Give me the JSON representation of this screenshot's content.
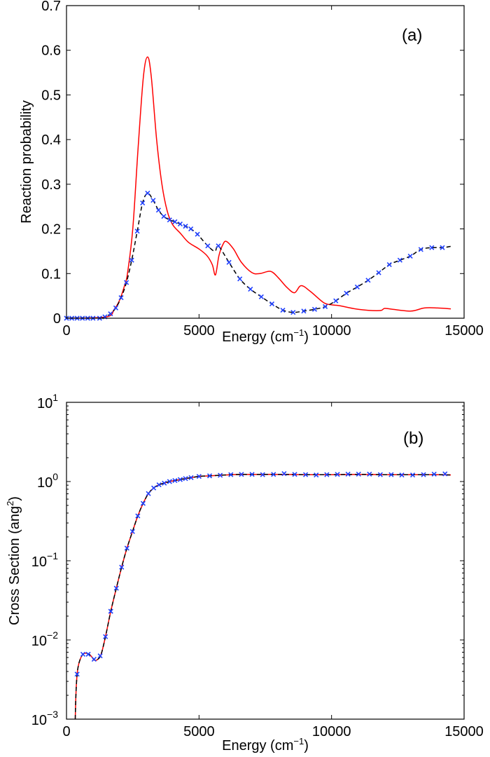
{
  "chart_data": [
    {
      "type": "line",
      "panel_label": "(a)",
      "xlabel": "Energy (cm",
      "xlabel_sup": "−1",
      "xlabel_close": ")",
      "ylabel": "Reaction probability",
      "xlim": [
        0,
        15000
      ],
      "ylim": [
        0,
        0.7
      ],
      "x_ticks": [
        "0",
        "5000",
        "10000",
        "15000"
      ],
      "y_ticks": [
        "0",
        "0.1",
        "0.2",
        "0.3",
        "0.4",
        "0.5",
        "0.6",
        "0.7"
      ],
      "y_scale": "linear",
      "grid": false,
      "series": [
        {
          "style": "solid",
          "color": "#ff0000",
          "x": [
            0,
            1500,
            1800,
            2000,
            2200,
            2300,
            2500,
            2700,
            2900,
            3060,
            3200,
            3400,
            3600,
            3800,
            4000,
            4300,
            4600,
            5000,
            5300,
            5500,
            5620,
            5750,
            5900,
            6030,
            6300,
            6600,
            7000,
            7300,
            7700,
            8000,
            8300,
            8600,
            8850,
            9200,
            9700,
            10000,
            10300,
            11000,
            11800,
            12000,
            12300,
            13000,
            13500,
            14000,
            14500
          ],
          "y": [
            0,
            0.003,
            0.02,
            0.04,
            0.075,
            0.1,
            0.2,
            0.38,
            0.54,
            0.585,
            0.54,
            0.4,
            0.3,
            0.24,
            0.21,
            0.19,
            0.17,
            0.155,
            0.14,
            0.12,
            0.097,
            0.14,
            0.165,
            0.172,
            0.155,
            0.125,
            0.102,
            0.1,
            0.105,
            0.09,
            0.07,
            0.057,
            0.073,
            0.06,
            0.035,
            0.03,
            0.028,
            0.02,
            0.017,
            0.022,
            0.02,
            0.016,
            0.023,
            0.023,
            0.021
          ]
        },
        {
          "style": "dashed",
          "color": "#000000",
          "x": [
            0,
            1250,
            1450,
            1660,
            1860,
            2060,
            2260,
            2460,
            2670,
            2870,
            3060,
            3270,
            3470,
            3670,
            3890,
            4090,
            4290,
            4490,
            4690,
            4940,
            5330,
            5600,
            5730,
            6130,
            6540,
            6940,
            7350,
            7750,
            8160,
            8550,
            8950,
            9360,
            9760,
            10160,
            10560,
            10970,
            11380,
            11780,
            12180,
            12580,
            12970,
            13370,
            13780,
            14180,
            14500
          ],
          "y": [
            0,
            0,
            0.003,
            0.01,
            0.023,
            0.046,
            0.08,
            0.13,
            0.195,
            0.258,
            0.28,
            0.264,
            0.242,
            0.228,
            0.22,
            0.216,
            0.211,
            0.206,
            0.2,
            0.188,
            0.162,
            0.15,
            0.162,
            0.125,
            0.088,
            0.065,
            0.048,
            0.032,
            0.018,
            0.013,
            0.016,
            0.02,
            0.026,
            0.039,
            0.056,
            0.07,
            0.085,
            0.102,
            0.12,
            0.13,
            0.139,
            0.154,
            0.158,
            0.158,
            0.161
          ]
        },
        {
          "style": "markers-x",
          "color": "#2040ff",
          "x": [
            0,
            200,
            400,
            600,
            800,
            1000,
            1250,
            1450,
            1660,
            1860,
            2060,
            2260,
            2460,
            2670,
            2870,
            3060,
            3270,
            3470,
            3670,
            3890,
            4090,
            4290,
            4490,
            4690,
            4940,
            5330,
            5730,
            6130,
            6540,
            6940,
            7350,
            7750,
            8160,
            8550,
            8950,
            9360,
            9760,
            10160,
            10560,
            10970,
            11380,
            11780,
            12180,
            12580,
            12970,
            13370,
            13780,
            14180
          ],
          "y": [
            0,
            0,
            0,
            0,
            0,
            0,
            0,
            0.003,
            0.01,
            0.023,
            0.046,
            0.08,
            0.13,
            0.195,
            0.258,
            0.28,
            0.264,
            0.242,
            0.228,
            0.22,
            0.216,
            0.211,
            0.206,
            0.2,
            0.188,
            0.162,
            0.162,
            0.125,
            0.088,
            0.065,
            0.048,
            0.032,
            0.018,
            0.013,
            0.016,
            0.02,
            0.026,
            0.039,
            0.056,
            0.07,
            0.085,
            0.102,
            0.12,
            0.13,
            0.139,
            0.154,
            0.158,
            0.158
          ]
        }
      ]
    },
    {
      "type": "line",
      "panel_label": "(b)",
      "xlabel": "Energy (cm",
      "xlabel_sup": "−1",
      "xlabel_close": ")",
      "ylabel": "Cross Section (ang",
      "ylabel_sup": "2",
      "ylabel_close": ")",
      "xlim": [
        0,
        15000
      ],
      "ylim": [
        0.001,
        10
      ],
      "y_scale": "log",
      "x_ticks": [
        "0",
        "5000",
        "10000",
        "15000"
      ],
      "y_ticks": [
        {
          "base": "10",
          "exp": "−3"
        },
        {
          "base": "10",
          "exp": "−2"
        },
        {
          "base": "10",
          "exp": "−1"
        },
        {
          "base": "10",
          "exp": "0"
        },
        {
          "base": "10",
          "exp": "1"
        }
      ],
      "grid": false,
      "series": [
        {
          "style": "solid",
          "color": "#ff0000",
          "x": [
            330,
            350,
            380,
            420,
            500,
            620,
            750,
            900,
            1050,
            1150,
            1300,
            1470,
            1670,
            1880,
            2080,
            2280,
            2490,
            2690,
            2890,
            3090,
            3290,
            3490,
            3690,
            3890,
            4090,
            4290,
            4490,
            4700,
            5000,
            5400,
            5800,
            6200,
            6600,
            7000,
            8000,
            9000,
            10000,
            11000,
            12000,
            13000,
            14000,
            14500
          ],
          "y": [
            0.001,
            0.0018,
            0.003,
            0.0042,
            0.0055,
            0.0066,
            0.0068,
            0.0064,
            0.0056,
            0.0056,
            0.0065,
            0.011,
            0.023,
            0.045,
            0.083,
            0.144,
            0.234,
            0.368,
            0.53,
            0.705,
            0.83,
            0.91,
            0.955,
            1.0,
            1.03,
            1.06,
            1.09,
            1.12,
            1.16,
            1.18,
            1.2,
            1.22,
            1.23,
            1.23,
            1.23,
            1.22,
            1.22,
            1.23,
            1.22,
            1.22,
            1.22,
            1.21
          ]
        },
        {
          "style": "dashed",
          "color": "#000000",
          "x": [
            330,
            350,
            380,
            420,
            500,
            620,
            750,
            900,
            1050,
            1150,
            1300,
            1470,
            1670,
            1880,
            2080,
            2280,
            2490,
            2690,
            2890,
            3090,
            3290,
            3490,
            3690,
            3890,
            4090,
            4290,
            4490,
            4700,
            5000,
            5400,
            5800,
            6200,
            6600,
            7000,
            8000,
            9000,
            10000,
            11000,
            12000,
            13000,
            14000,
            14500
          ],
          "y": [
            0.001,
            0.0018,
            0.003,
            0.0042,
            0.0055,
            0.0066,
            0.0068,
            0.0064,
            0.0056,
            0.0056,
            0.0065,
            0.011,
            0.023,
            0.045,
            0.083,
            0.144,
            0.234,
            0.368,
            0.53,
            0.705,
            0.83,
            0.91,
            0.955,
            1.0,
            1.03,
            1.06,
            1.09,
            1.12,
            1.16,
            1.18,
            1.2,
            1.22,
            1.23,
            1.23,
            1.23,
            1.22,
            1.22,
            1.23,
            1.22,
            1.22,
            1.22,
            1.21
          ]
        },
        {
          "style": "markers-x",
          "color": "#2040ff",
          "x": [
            400,
            620,
            820,
            1040,
            1270,
            1470,
            1670,
            1880,
            2080,
            2280,
            2490,
            2690,
            2890,
            3090,
            3290,
            3490,
            3690,
            3890,
            4090,
            4290,
            4490,
            4700,
            5000,
            5400,
            5800,
            6200,
            6600,
            7000,
            7400,
            7810,
            8210,
            8610,
            9020,
            9420,
            9820,
            10220,
            10620,
            11020,
            11430,
            11840,
            12250,
            12650,
            13060,
            13470,
            13870,
            14280
          ],
          "y": [
            0.0037,
            0.0066,
            0.0066,
            0.0057,
            0.0063,
            0.011,
            0.023,
            0.045,
            0.083,
            0.144,
            0.234,
            0.368,
            0.53,
            0.705,
            0.83,
            0.91,
            0.955,
            1.0,
            1.03,
            1.06,
            1.09,
            1.12,
            1.16,
            1.18,
            1.2,
            1.22,
            1.23,
            1.23,
            1.22,
            1.23,
            1.26,
            1.23,
            1.22,
            1.21,
            1.22,
            1.23,
            1.24,
            1.24,
            1.24,
            1.22,
            1.22,
            1.21,
            1.21,
            1.22,
            1.24,
            1.25
          ]
        }
      ]
    }
  ]
}
